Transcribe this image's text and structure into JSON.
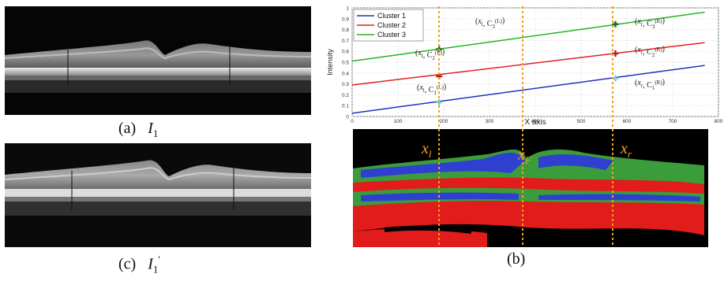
{
  "panels": {
    "a": {
      "tag": "(a)",
      "sym": "I",
      "sub": "1",
      "sup": ""
    },
    "c": {
      "tag": "(c)",
      "sym": "I",
      "sub": "1",
      "sup": "'"
    },
    "b": {
      "tag": "(b)"
    }
  },
  "chart_data": {
    "type": "line",
    "xlabel": "X axis",
    "ylabel": "Intensity",
    "xlim": [
      0,
      800
    ],
    "ylim": [
      0,
      1
    ],
    "xticks": [
      0,
      100,
      200,
      300,
      400,
      500,
      600,
      700,
      800
    ],
    "yticks": [
      0,
      0.1,
      0.2,
      0.3,
      0.4,
      0.5,
      0.6,
      0.7,
      0.8,
      0.9,
      1
    ],
    "grid": true,
    "legend_position": "top-left",
    "series": [
      {
        "name": "Cluster 1",
        "color": "#1f2fbf",
        "x": [
          0,
          770
        ],
        "y": [
          0.03,
          0.47
        ]
      },
      {
        "name": "Cluster 2",
        "color": "#e02020",
        "x": [
          0,
          770
        ],
        "y": [
          0.29,
          0.68
        ]
      },
      {
        "name": "Cluster 3",
        "color": "#22b422",
        "x": [
          0,
          770
        ],
        "y": [
          0.51,
          0.96
        ]
      }
    ],
    "vlines": [
      {
        "label": "x_l",
        "x": 190,
        "color": "#f0a020"
      },
      {
        "label": "x_F",
        "x": 378,
        "color": "#f0a020"
      },
      {
        "label": "x_r",
        "x": 575,
        "color": "#f0a020"
      }
    ],
    "markers": [
      {
        "x": 190,
        "y": 0.62,
        "color": "#1a6b1a"
      },
      {
        "x": 190,
        "y": 0.37,
        "color": "#c01818"
      },
      {
        "x": 190,
        "y": 0.13,
        "color": "#7fd0e0"
      },
      {
        "x": 575,
        "y": 0.85,
        "color": "#1a6b1a"
      },
      {
        "x": 575,
        "y": 0.58,
        "color": "#c01818"
      },
      {
        "x": 575,
        "y": 0.35,
        "color": "#7fd0e0"
      }
    ],
    "annotations": [
      {
        "text": "(x_l, C_3^(L))",
        "lead": "x",
        "sub1": "l",
        "c": "C",
        "csub": "3",
        "csup": "(L)"
      },
      {
        "text": "(x_l, C_2^(L))",
        "lead": "x",
        "sub1": "l",
        "c": "C",
        "csub": "2",
        "csup": "(L)"
      },
      {
        "text": "(x_l, C_1^(L))",
        "lead": "x",
        "sub1": "l",
        "c": "C",
        "csub": "1",
        "csup": "(L)"
      },
      {
        "text": "(x_r, C_3^(R))",
        "lead": "x",
        "sub1": "r",
        "c": "C",
        "csub": "3",
        "csup": "(R)"
      },
      {
        "text": "(x_r, C_2^(R))",
        "lead": "x",
        "sub1": "r",
        "c": "C",
        "csub": "2",
        "csup": "(R)"
      },
      {
        "text": "(x_r, C_1^(R))",
        "lead": "x",
        "sub1": "r",
        "c": "C",
        "csub": "1",
        "csup": "(R)"
      }
    ]
  },
  "segmentation": {
    "labels": [
      {
        "base": "x",
        "sub": "l"
      },
      {
        "base": "x",
        "sub": "F"
      },
      {
        "base": "x",
        "sub": "r"
      }
    ],
    "label_color": "#f0a020"
  }
}
